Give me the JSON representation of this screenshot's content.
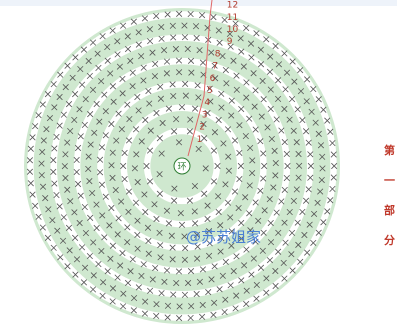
{
  "diagram": {
    "center_label": "环",
    "row_numbers": [
      "1",
      "2",
      "3",
      "4",
      "5",
      "6",
      "7",
      "8",
      "9",
      "10",
      "11",
      "12"
    ],
    "watermark": "@苏苏姐家",
    "side_note": [
      "第",
      "一",
      "部",
      "分"
    ],
    "colors": {
      "band": "#cfe8cf",
      "stitch": "#555555",
      "row_number": "#b03a2e",
      "marker_line": "#e06666",
      "watermark": "#4a7fd4",
      "side_note": "#c0392b"
    },
    "icons": [
      "single-crochet-x-icon",
      "double-crochet-cross-icon",
      "magic-ring-icon"
    ]
  }
}
